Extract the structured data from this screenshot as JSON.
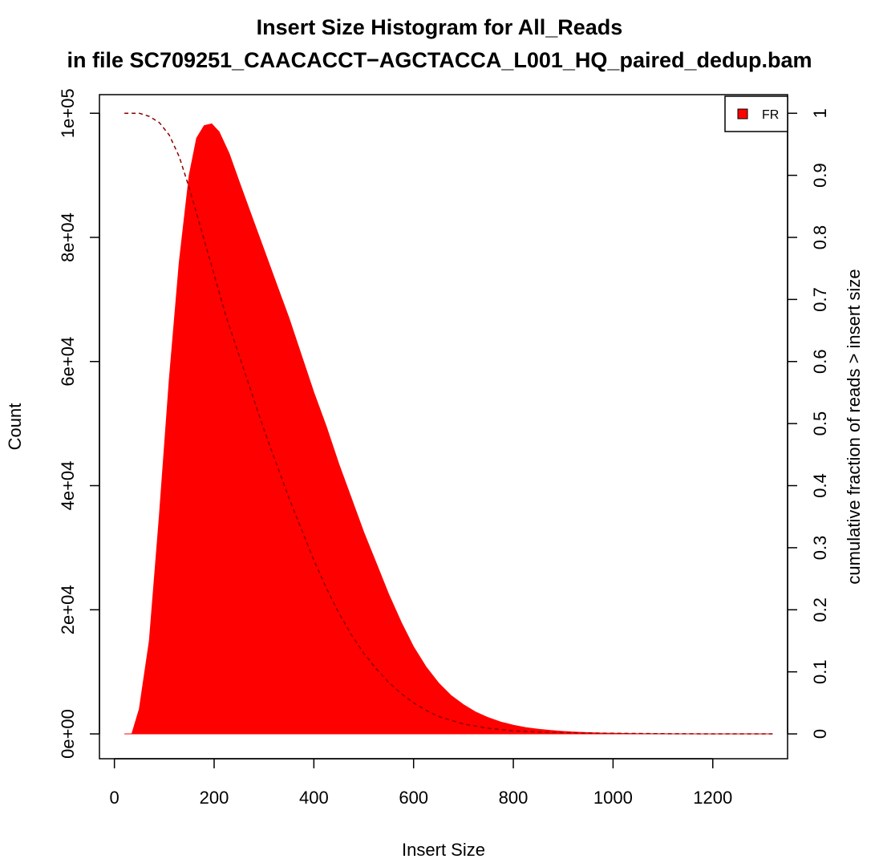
{
  "chart_data": {
    "type": "histogram",
    "title": "Insert Size Histogram for All_Reads",
    "subtitle": "in file SC709251_CAACACCT−AGCTACCA_L001_HQ_paired_dedup.bam",
    "xlabel": "Insert Size",
    "ylabel": "Count",
    "y2label": "cumulative fraction of reads > insert size",
    "xlim": [
      -30,
      1350
    ],
    "ylim": [
      -4000,
      103000
    ],
    "y2lim": [
      -0.04,
      1.03
    ],
    "x_ticks": [
      0,
      200,
      400,
      600,
      800,
      1000,
      1200
    ],
    "x_tick_labels": [
      "0",
      "200",
      "400",
      "600",
      "800",
      "1000",
      "1200"
    ],
    "y_ticks": [
      0,
      20000,
      40000,
      60000,
      80000,
      100000
    ],
    "y_tick_labels": [
      "0e+00",
      "2e+04",
      "4e+04",
      "6e+04",
      "8e+04",
      "1e+05"
    ],
    "y2_ticks": [
      0,
      0.1,
      0.2,
      0.3,
      0.4,
      0.5,
      0.6,
      0.7,
      0.8,
      0.9,
      1
    ],
    "y2_tick_labels": [
      "0",
      "0.1",
      "0.2",
      "0.3",
      "0.4",
      "0.5",
      "0.6",
      "0.7",
      "0.8",
      "0.9",
      "1"
    ],
    "legend": {
      "placement": "top-right",
      "entries": [
        {
          "label": "FR",
          "color": "#ff0000"
        }
      ]
    },
    "series": [
      {
        "name": "FR",
        "kind": "histogram",
        "color": "#ff0000",
        "x": [
          20,
          35,
          50,
          70,
          90,
          110,
          130,
          150,
          165,
          180,
          195,
          210,
          230,
          250,
          275,
          300,
          325,
          350,
          375,
          400,
          425,
          450,
          475,
          500,
          525,
          550,
          575,
          600,
          625,
          650,
          675,
          700,
          725,
          750,
          775,
          800,
          825,
          850,
          875,
          900,
          925,
          950,
          975,
          1000,
          1050,
          1100,
          1150,
          1200,
          1250,
          1320
        ],
        "y": [
          0,
          0,
          4000,
          15000,
          35000,
          57000,
          76000,
          90000,
          96000,
          98000,
          98300,
          97000,
          93500,
          89000,
          83500,
          78000,
          72500,
          67000,
          61000,
          55000,
          49500,
          43500,
          38000,
          32500,
          27500,
          22500,
          18000,
          14000,
          10800,
          8200,
          6200,
          4700,
          3500,
          2600,
          1900,
          1400,
          1000,
          750,
          550,
          400,
          280,
          200,
          140,
          100,
          50,
          25,
          10,
          5,
          2,
          0
        ]
      },
      {
        "name": "cumulative fraction of reads > insert size",
        "kind": "cumulative",
        "color": "#8b0000",
        "x": [
          20,
          50,
          70,
          90,
          110,
          130,
          150,
          175,
          200,
          225,
          250,
          275,
          300,
          325,
          350,
          375,
          400,
          425,
          450,
          475,
          500,
          525,
          550,
          575,
          600,
          625,
          650,
          700,
          750,
          800,
          850,
          900,
          1000,
          1100,
          1200,
          1320
        ],
        "y": [
          1.0,
          1.0,
          0.995,
          0.985,
          0.965,
          0.93,
          0.88,
          0.81,
          0.74,
          0.67,
          0.61,
          0.55,
          0.49,
          0.435,
          0.38,
          0.33,
          0.28,
          0.235,
          0.195,
          0.16,
          0.13,
          0.105,
          0.083,
          0.065,
          0.05,
          0.038,
          0.028,
          0.016,
          0.009,
          0.005,
          0.003,
          0.002,
          0.001,
          0.0003,
          0.0001,
          0
        ]
      }
    ]
  }
}
